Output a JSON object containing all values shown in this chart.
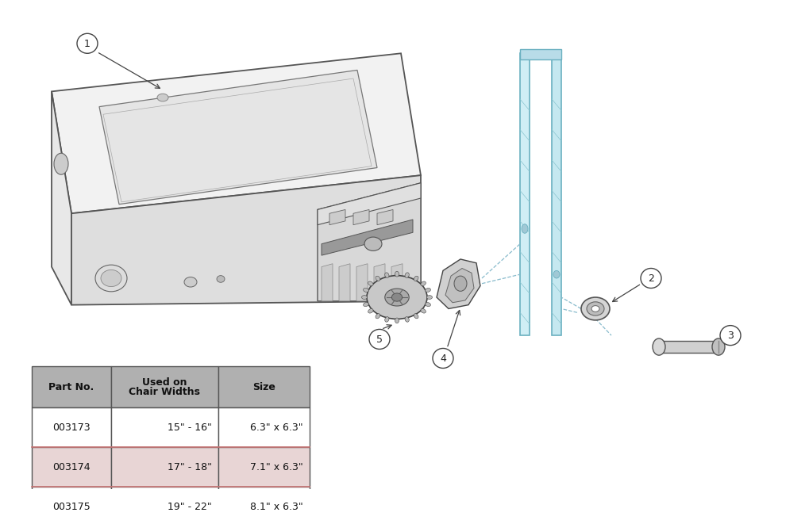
{
  "background_color": "#ffffff",
  "line_color": "#555555",
  "light_line": "#888888",
  "table": {
    "headers": [
      "Part No.",
      "Used on\nChair Widths",
      "Size"
    ],
    "rows": [
      [
        "003173",
        "15\" - 16\"",
        "6.3\" x 6.3\""
      ],
      [
        "003174",
        "17\" - 18\"",
        "7.1\" x 6.3\""
      ],
      [
        "003175",
        "19\" - 22\"",
        "8.1\" x 6.3\""
      ]
    ],
    "header_color": "#b0b0b0",
    "row_colors": [
      "#ffffff",
      "#e8d5d5",
      "#ffffff"
    ],
    "border_color": "#555555",
    "highlight_row_border": "#cc7777"
  }
}
